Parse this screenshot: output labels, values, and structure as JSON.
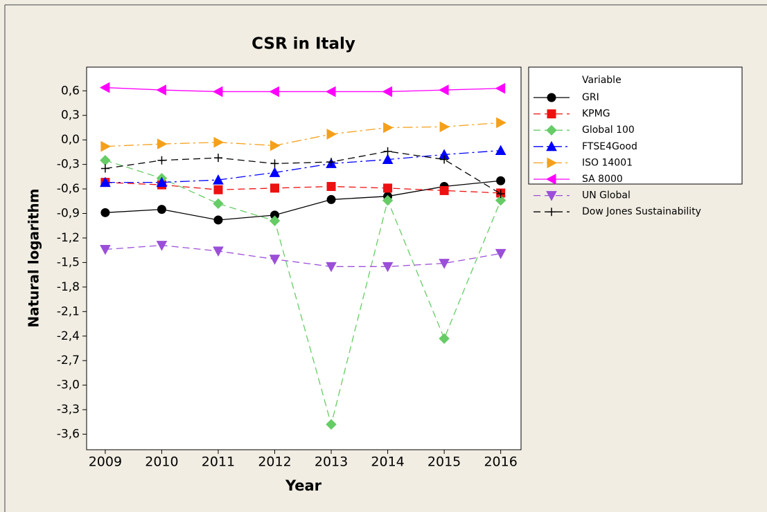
{
  "chart_data": {
    "type": "line",
    "title": "CSR in Italy",
    "xlabel": "Year",
    "ylabel": "Natural logarithm",
    "legend_title": "Variable",
    "legend": "right",
    "x": [
      2009,
      2010,
      2011,
      2012,
      2013,
      2014,
      2015,
      2016
    ],
    "xlim": [
      2008.67,
      2016.36
    ],
    "xticks": [
      2009,
      2010,
      2011,
      2012,
      2013,
      2014,
      2015,
      2016
    ],
    "ylim": [
      -3.79,
      0.89
    ],
    "yticks": [
      {
        "value": 0.6,
        "label": "0,6"
      },
      {
        "value": 0.3,
        "label": "0,3"
      },
      {
        "value": 0,
        "label": "0,0"
      },
      {
        "value": -0.3,
        "label": "-0,3"
      },
      {
        "value": -0.6,
        "label": "-0,6"
      },
      {
        "value": -0.9,
        "label": "-0,9"
      },
      {
        "value": -1.2,
        "label": "-1,2"
      },
      {
        "value": -1.5,
        "label": "-1,5"
      },
      {
        "value": -1.8,
        "label": "-1,8"
      },
      {
        "value": -2.1,
        "label": "-2,1"
      },
      {
        "value": -2.4,
        "label": "-2,4"
      },
      {
        "value": -2.7,
        "label": "-2,7"
      },
      {
        "value": -3.0,
        "label": "-3,0"
      },
      {
        "value": -3.3,
        "label": "-3,3"
      },
      {
        "value": -3.6,
        "label": "-3,6"
      }
    ],
    "grid": false,
    "series": [
      {
        "name": "GRI",
        "color": "#000000",
        "marker": "circle",
        "linestyle": "solid",
        "values": [
          -0.89,
          -0.85,
          -0.98,
          -0.92,
          -0.73,
          -0.69,
          -0.57,
          -0.5
        ]
      },
      {
        "name": "KPMG",
        "color": "#ee1111",
        "marker": "square",
        "linestyle": "dashed",
        "values": [
          -0.52,
          -0.55,
          -0.61,
          -0.59,
          -0.57,
          -0.59,
          -0.62,
          -0.65
        ]
      },
      {
        "name": "Global 100",
        "color": "#66cc66",
        "marker": "diamond",
        "linestyle": "dashed",
        "values": [
          -0.25,
          -0.47,
          -0.78,
          -0.99,
          -3.48,
          -0.74,
          -2.43,
          -0.74
        ]
      },
      {
        "name": "FTSE4Good",
        "color": "#0000ff",
        "marker": "triangle-up",
        "linestyle": "dashdot",
        "values": [
          -0.52,
          -0.52,
          -0.49,
          -0.4,
          -0.29,
          -0.24,
          -0.18,
          -0.13
        ]
      },
      {
        "name": "ISO 14001",
        "color": "#f5a01a",
        "marker": "triangle-right",
        "linestyle": "dashdot",
        "values": [
          -0.08,
          -0.05,
          -0.03,
          -0.07,
          0.07,
          0.15,
          0.16,
          0.21
        ]
      },
      {
        "name": "SA 8000",
        "color": "#ff00ff",
        "marker": "triangle-left",
        "linestyle": "solid",
        "values": [
          0.64,
          0.61,
          0.59,
          0.59,
          0.59,
          0.59,
          0.61,
          0.63
        ]
      },
      {
        "name": "UN Global",
        "color": "#9b4fd8",
        "marker": "triangle-down",
        "linestyle": "dashed",
        "values": [
          -1.34,
          -1.29,
          -1.36,
          -1.46,
          -1.55,
          -1.55,
          -1.51,
          -1.39
        ]
      },
      {
        "name": "Dow Jones Sustainability",
        "color": "#000000",
        "marker": "plus",
        "linestyle": "dashed",
        "values": [
          -0.35,
          -0.25,
          -0.22,
          -0.29,
          -0.27,
          -0.14,
          -0.24,
          -0.66
        ]
      }
    ]
  }
}
